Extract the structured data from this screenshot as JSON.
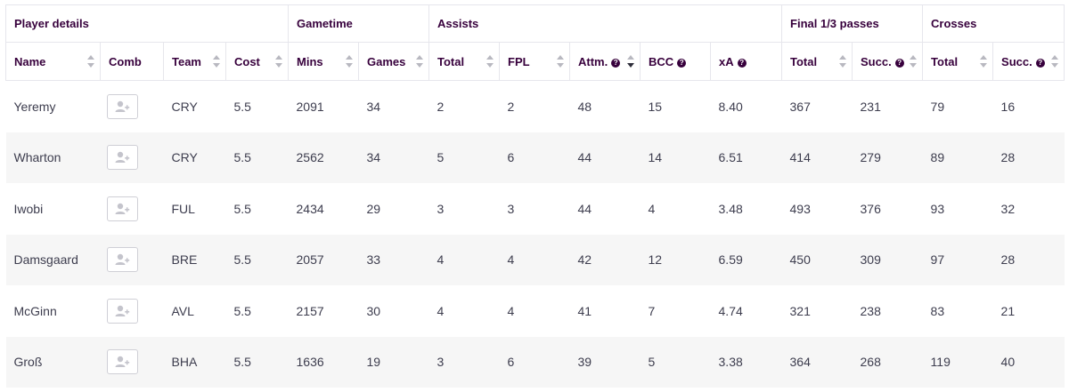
{
  "groups": {
    "player_details": "Player details",
    "gametime": "Gametime",
    "assists": "Assists",
    "final_third": "Final 1/3 passes",
    "crosses": "Crosses"
  },
  "columns": {
    "name": "Name",
    "comb": "Comb",
    "team": "Team",
    "cost": "Cost",
    "mins": "Mins",
    "games": "Games",
    "assists_total": "Total",
    "fpl": "FPL",
    "attm": "Attm.",
    "bcc": "BCC",
    "xa": "xA",
    "final_total": "Total",
    "final_succ": "Succ.",
    "crosses_total": "Total",
    "crosses_succ": "Succ."
  },
  "help_glyph": "?",
  "icons": {
    "comb_button": "add-player-icon",
    "sort": "sort-arrows-icon",
    "help": "help-circle-icon"
  },
  "colors": {
    "header_text": "#37003c",
    "row_alt": "#f6f6f6",
    "border": "#e6e6ec"
  },
  "sorted_column": "attm",
  "rows": [
    {
      "name": "Yeremy",
      "team": "CRY",
      "cost": "5.5",
      "mins": "2091",
      "games": "34",
      "assists_total": "2",
      "fpl": "2",
      "attm": "48",
      "bcc": "15",
      "xa": "8.40",
      "final_total": "367",
      "final_succ": "231",
      "crosses_total": "79",
      "crosses_succ": "16"
    },
    {
      "name": "Wharton",
      "team": "CRY",
      "cost": "5.5",
      "mins": "2562",
      "games": "34",
      "assists_total": "5",
      "fpl": "6",
      "attm": "44",
      "bcc": "14",
      "xa": "6.51",
      "final_total": "414",
      "final_succ": "279",
      "crosses_total": "89",
      "crosses_succ": "28"
    },
    {
      "name": "Iwobi",
      "team": "FUL",
      "cost": "5.5",
      "mins": "2434",
      "games": "29",
      "assists_total": "3",
      "fpl": "3",
      "attm": "44",
      "bcc": "4",
      "xa": "3.48",
      "final_total": "493",
      "final_succ": "376",
      "crosses_total": "93",
      "crosses_succ": "32"
    },
    {
      "name": "Damsgaard",
      "team": "BRE",
      "cost": "5.5",
      "mins": "2057",
      "games": "33",
      "assists_total": "4",
      "fpl": "4",
      "attm": "42",
      "bcc": "12",
      "xa": "6.59",
      "final_total": "450",
      "final_succ": "309",
      "crosses_total": "97",
      "crosses_succ": "28"
    },
    {
      "name": "McGinn",
      "team": "AVL",
      "cost": "5.5",
      "mins": "2157",
      "games": "30",
      "assists_total": "4",
      "fpl": "4",
      "attm": "41",
      "bcc": "7",
      "xa": "4.74",
      "final_total": "321",
      "final_succ": "238",
      "crosses_total": "83",
      "crosses_succ": "21"
    },
    {
      "name": "Groß",
      "team": "BHA",
      "cost": "5.5",
      "mins": "1636",
      "games": "19",
      "assists_total": "3",
      "fpl": "6",
      "attm": "39",
      "bcc": "5",
      "xa": "3.38",
      "final_total": "364",
      "final_succ": "268",
      "crosses_total": "119",
      "crosses_succ": "40"
    }
  ]
}
